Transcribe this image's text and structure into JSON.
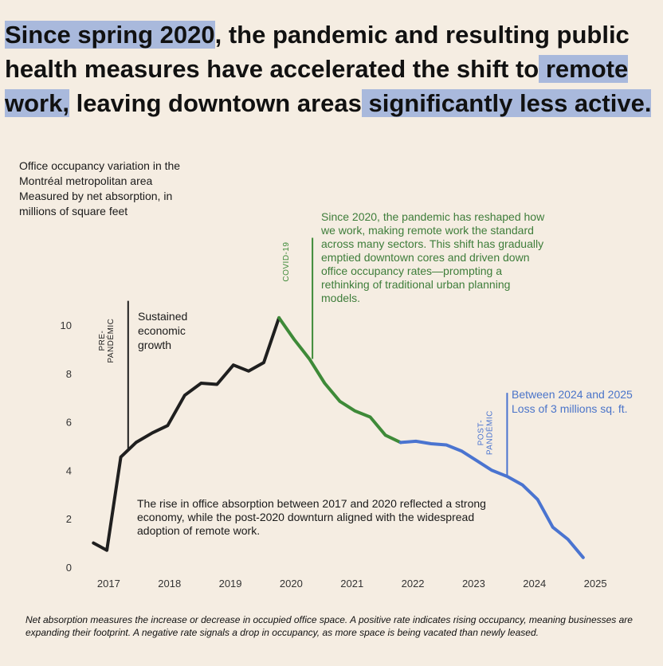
{
  "headline": {
    "part1": "Since spring 2020",
    "part2": ", the pandemic and resulting public health measures have accelerated the shift to",
    "part3": " remote work,",
    "part4": " leaving downtown areas",
    "part5": " significantly less active."
  },
  "colors": {
    "background": "#f5ede2",
    "highlight": "#a9b9dc",
    "pre_pandemic_line": "#1f1f1f",
    "covid_line": "#3e8a38",
    "post_pandemic_line": "#4a74d0"
  },
  "chart_data": {
    "type": "line",
    "title_lines": [
      "Office occupancy variation in the",
      "Montréal metropolitan area",
      "Measured by net absorption, in",
      "millions of square feet"
    ],
    "xlabel": "",
    "ylabel": "",
    "x_ticks": [
      "2017",
      "2018",
      "2019",
      "2020",
      "2021",
      "2022",
      "2023",
      "2024",
      "2025"
    ],
    "x_tick_values": [
      2017,
      2018,
      2019,
      2020,
      2021,
      2022,
      2023,
      2024,
      2025
    ],
    "y_ticks": [
      "0",
      "2",
      "4",
      "6",
      "8",
      "10"
    ],
    "y_tick_values": [
      0,
      2,
      4,
      6,
      8,
      10
    ],
    "xlim": [
      2016.72,
      2025.3
    ],
    "ylim": [
      0,
      10
    ],
    "series": [
      {
        "name": "Pre-pandemic",
        "color": "#1f1f1f",
        "x": [
          2016.75,
          2016.97,
          2017.2,
          2017.45,
          2017.72,
          2017.97,
          2018.25,
          2018.52,
          2018.78,
          2019.05,
          2019.3,
          2019.55,
          2019.8
        ],
        "y": [
          1.0,
          0.7,
          4.55,
          5.15,
          5.55,
          5.85,
          7.1,
          7.6,
          7.55,
          8.35,
          8.1,
          8.45,
          10.3
        ]
      },
      {
        "name": "Pandemic",
        "color": "#3e8a38",
        "x": [
          2019.8,
          2020.05,
          2020.3,
          2020.55,
          2020.8,
          2021.05,
          2021.3,
          2021.55,
          2021.8
        ],
        "y": [
          10.3,
          9.4,
          8.6,
          7.6,
          6.85,
          6.45,
          6.2,
          5.45,
          5.15
        ]
      },
      {
        "name": "Post-pandemic",
        "color": "#4a74d0",
        "x": [
          2021.8,
          2022.05,
          2022.3,
          2022.55,
          2022.8,
          2023.05,
          2023.3,
          2023.55,
          2023.8,
          2024.05,
          2024.3,
          2024.55,
          2024.8
        ],
        "y": [
          5.15,
          5.2,
          5.1,
          5.05,
          4.8,
          4.4,
          4.0,
          3.75,
          3.4,
          2.8,
          1.65,
          1.15,
          0.4
        ]
      }
    ],
    "markers": [
      {
        "key": "pre",
        "x": 2017.32,
        "y_top": 11.0,
        "y_bottom": 4.8,
        "label_lines": [
          "PRE-",
          "PANDÉMIC"
        ],
        "color": "#1f1f1f"
      },
      {
        "key": "covid",
        "x": 2020.35,
        "y_top": 13.6,
        "y_bottom": 8.6,
        "label_lines": [
          "COVID-19"
        ],
        "color": "#3e8a38"
      },
      {
        "key": "post",
        "x": 2023.55,
        "y_top": 7.2,
        "y_bottom": 3.75,
        "label_lines": [
          "POST-",
          "PANDÉMIC"
        ],
        "color": "#4a74d0"
      }
    ],
    "annotations": {
      "sustained_growth": [
        "Sustained",
        "economic",
        "growth"
      ],
      "covid_text": [
        "Since 2020, the pandemic has reshaped how",
        "we work, making remote work the standard",
        "across many sectors. This shift has gradually",
        "emptied downtown cores and driven down",
        "office occupancy rates—prompting a",
        "rethinking of traditional urban planning",
        "models."
      ],
      "post_text": [
        "Between 2024 and 2025",
        "Loss of 3 millions sq. ft."
      ],
      "rise_text": [
        "The rise in office absorption between 2017 and 2020 reflected a strong",
        "economy, while the post-2020 downturn aligned with the widespread",
        "adoption of remote work."
      ]
    }
  },
  "footnote": "Net absorption measures the increase or decrease in occupied office space. A positive rate indicates rising occupancy, meaning businesses are expanding their footprint. A negative rate signals a drop in occupancy, as more space is being vacated than newly leased."
}
